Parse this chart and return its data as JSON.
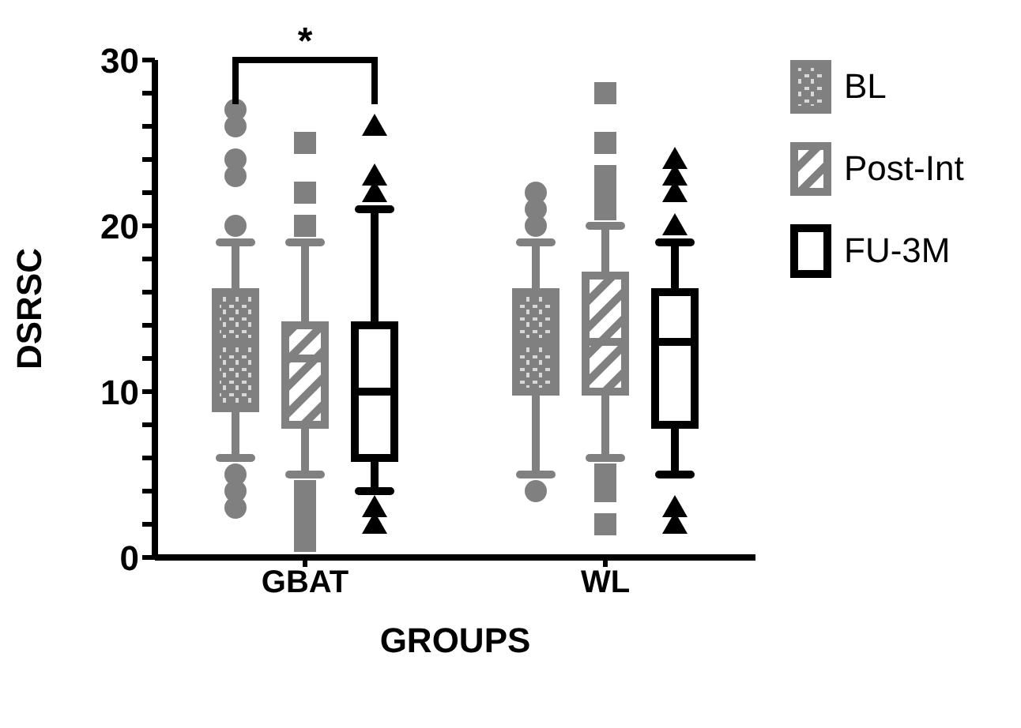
{
  "chart_data": {
    "type": "box",
    "categories": [
      "GBAT",
      "WL"
    ],
    "xlabel": "GROUPS",
    "ylabel": "DSRSC",
    "ylim": [
      0,
      30
    ],
    "yticks": [
      0,
      {
        "value": 2,
        "label": null
      },
      {
        "value": 4,
        "label": null
      },
      {
        "value": 6,
        "label": null
      },
      {
        "value": 8,
        "label": null
      },
      10,
      {
        "value": 12,
        "label": null
      },
      {
        "value": 14,
        "label": null
      },
      {
        "value": 16,
        "label": null
      },
      {
        "value": 18,
        "label": null
      },
      20,
      {
        "value": 22,
        "label": null
      },
      {
        "value": 24,
        "label": null
      },
      {
        "value": 26,
        "label": null
      },
      {
        "value": 28,
        "label": null
      },
      30
    ],
    "legend": "right",
    "grid": false,
    "annotations": [
      "*"
    ],
    "series": [
      {
        "name": "BL",
        "color": "#808080",
        "marker": "circle",
        "boxes": [
          {
            "low": 6,
            "q1": 9,
            "median": 13,
            "q3": 16,
            "high": 19,
            "outliers": [
              20,
              23,
              24,
              26,
              27,
              5,
              4,
              3
            ]
          },
          {
            "low": 5,
            "q1": 10,
            "median": 13,
            "q3": 16,
            "high": 19,
            "outliers": [
              20,
              21,
              22,
              4
            ]
          }
        ]
      },
      {
        "name": "Post-Int",
        "color": "#808080",
        "marker": "square",
        "boxes": [
          {
            "low": 5,
            "q1": 8,
            "median": 12,
            "q3": 14,
            "high": 19,
            "outliers": [
              20,
              22,
              25,
              4,
              3,
              2,
              1
            ]
          },
          {
            "low": 6,
            "q1": 10,
            "median": 13,
            "q3": 17,
            "high": 20,
            "outliers": [
              21,
              22,
              23,
              25,
              28,
              5,
              4,
              2
            ]
          }
        ]
      },
      {
        "name": "FU-3M",
        "color": "#000000",
        "marker": "triangle",
        "boxes": [
          {
            "low": 4,
            "q1": 6,
            "median": 10,
            "q3": 14,
            "high": 21,
            "outliers": [
              22,
              23,
              26,
              3,
              2
            ]
          },
          {
            "low": 5,
            "q1": 8,
            "median": 13,
            "q3": 16,
            "high": 19,
            "outliers": [
              20,
              22,
              23,
              24,
              3,
              2
            ]
          }
        ]
      }
    ]
  }
}
